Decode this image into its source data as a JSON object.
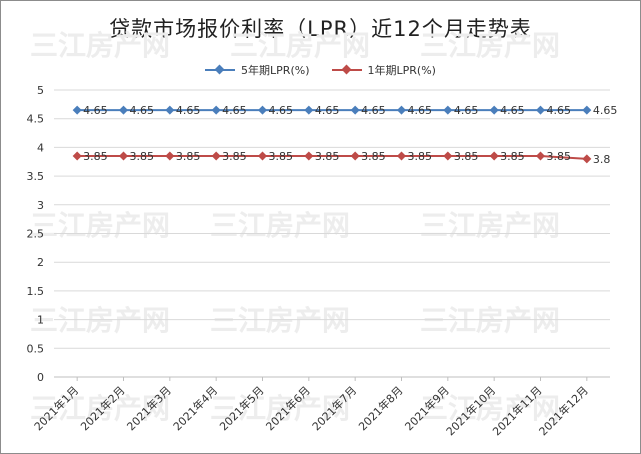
{
  "chart_data": {
    "type": "line",
    "title": "贷款市场报价利率（LPR）近12个月走势表",
    "watermark": "三江房产网",
    "categories": [
      "2021年1月",
      "2021年2月",
      "2021年3月",
      "2021年4月",
      "2021年5月",
      "2021年6月",
      "2021年7月",
      "2021年8月",
      "2021年9月",
      "2021年10月",
      "2021年11月",
      "2021年12月"
    ],
    "series": [
      {
        "name": "5年期LPR(%)",
        "color": "#4a7ebb",
        "values": [
          4.65,
          4.65,
          4.65,
          4.65,
          4.65,
          4.65,
          4.65,
          4.65,
          4.65,
          4.65,
          4.65,
          4.65
        ],
        "labels": [
          "4.65",
          "4.65",
          "4.65",
          "4.65",
          "4.65",
          "4.65",
          "4.65",
          "4.65",
          "4.65",
          "4.65",
          "4.65",
          "4.65"
        ]
      },
      {
        "name": "1年期LPR(%)",
        "color": "#be4b48",
        "values": [
          3.85,
          3.85,
          3.85,
          3.85,
          3.85,
          3.85,
          3.85,
          3.85,
          3.85,
          3.85,
          3.85,
          3.8
        ],
        "labels": [
          "3.85",
          "3.85",
          "3.85",
          "3.85",
          "3.85",
          "3.85",
          "3.85",
          "3.85",
          "3.85",
          "3.85",
          "3.85",
          "3.8"
        ]
      }
    ],
    "ylim": [
      0,
      5
    ],
    "yticks": [
      "0",
      "0.5",
      "1",
      "1.5",
      "2",
      "2.5",
      "3",
      "3.5",
      "4",
      "4.5",
      "5"
    ],
    "xlabel": "",
    "ylabel": "",
    "grid": true,
    "legend": "top-center"
  }
}
